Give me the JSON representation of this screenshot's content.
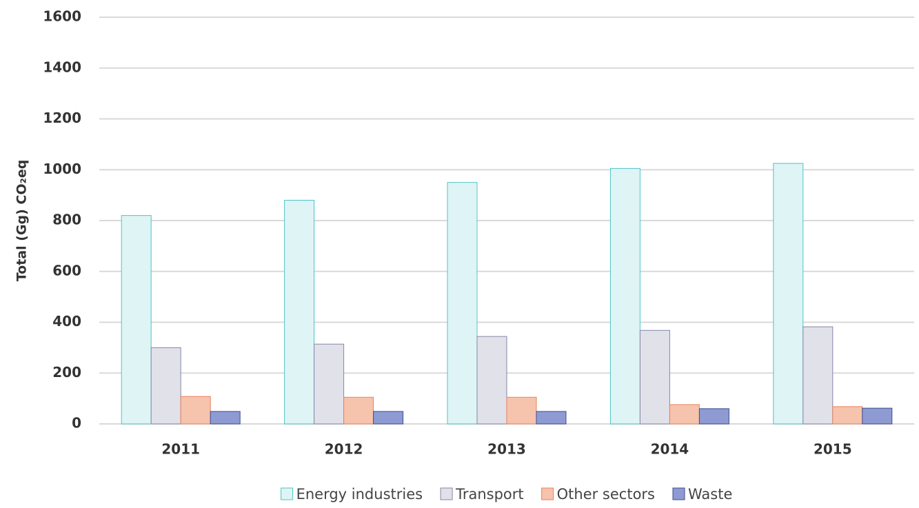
{
  "chart_data": {
    "type": "bar",
    "ylabel": "Total (Gg) CO₂eq",
    "categories": [
      "2011",
      "2012",
      "2013",
      "2014",
      "2015"
    ],
    "series": [
      {
        "name": "Energy industries",
        "color": "#dff4f5",
        "stroke": "#4cc4c8",
        "values": [
          820,
          880,
          950,
          1005,
          1025
        ]
      },
      {
        "name": "Transport",
        "color": "#e1e1ea",
        "stroke": "#8585a8",
        "values": [
          300,
          314,
          344,
          368,
          382
        ]
      },
      {
        "name": "Other sectors",
        "color": "#f6c3ad",
        "stroke": "#e8825c",
        "values": [
          108,
          105,
          105,
          76,
          68
        ]
      },
      {
        "name": "Waste",
        "color": "#8d9bd2",
        "stroke": "#3d4c92",
        "values": [
          49,
          49,
          49,
          60,
          62
        ]
      }
    ],
    "ylim": [
      0,
      1600
    ],
    "yticks": [
      0,
      200,
      400,
      600,
      800,
      1000,
      1200,
      1400,
      1600
    ],
    "grid": true,
    "legend": "bottom"
  }
}
